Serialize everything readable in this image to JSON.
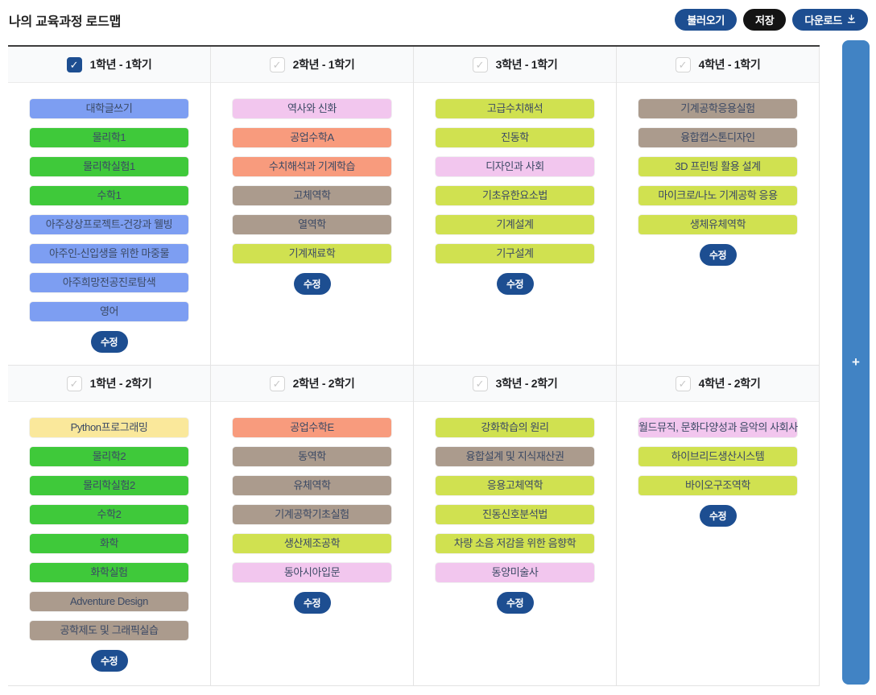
{
  "page": {
    "title": "나의 교육과정 로드맵"
  },
  "toolbar": {
    "load_label": "불러오기",
    "save_label": "저장",
    "download_label": "다운로드"
  },
  "edit_button_label": "수정",
  "add_bar": {
    "plus": "+"
  },
  "colors": {
    "blue": "#7d9ef2",
    "green": "#3fc93a",
    "lime": "#d0e150",
    "pink": "#f2c6ee",
    "salmon": "#f89b7d",
    "taupe": "#ab9b8d",
    "yellow": "#fae89b",
    "navy": "#1d4e91",
    "black": "#141414",
    "sidebar_blue": "#4183c4"
  },
  "semesters": [
    {
      "label": "1학년 - 1학기",
      "checked": true,
      "courses": [
        {
          "name": "대학글쓰기",
          "color": "blue"
        },
        {
          "name": "물리학1",
          "color": "green"
        },
        {
          "name": "물리학실험1",
          "color": "green"
        },
        {
          "name": "수학1",
          "color": "green"
        },
        {
          "name": "아주상상프로젝트-건강과 웰빙",
          "color": "blue"
        },
        {
          "name": "아주인-신입생을 위한 마중물",
          "color": "blue"
        },
        {
          "name": "아주희망전공진로탐색",
          "color": "blue"
        },
        {
          "name": "영어",
          "color": "blue"
        }
      ]
    },
    {
      "label": "2학년 - 1학기",
      "checked": false,
      "courses": [
        {
          "name": "역사와 신화",
          "color": "pink"
        },
        {
          "name": "공업수학A",
          "color": "salmon"
        },
        {
          "name": "수치해석과 기계학습",
          "color": "salmon"
        },
        {
          "name": "고체역학",
          "color": "taupe"
        },
        {
          "name": "열역학",
          "color": "taupe"
        },
        {
          "name": "기계재료학",
          "color": "lime"
        }
      ]
    },
    {
      "label": "3학년 - 1학기",
      "checked": false,
      "courses": [
        {
          "name": "고급수치해석",
          "color": "lime"
        },
        {
          "name": "진동학",
          "color": "lime"
        },
        {
          "name": "디자인과 사회",
          "color": "pink"
        },
        {
          "name": "기초유한요소법",
          "color": "lime"
        },
        {
          "name": "기계설계",
          "color": "lime"
        },
        {
          "name": "기구설계",
          "color": "lime"
        }
      ]
    },
    {
      "label": "4학년 - 1학기",
      "checked": false,
      "courses": [
        {
          "name": "기계공학응용실험",
          "color": "taupe"
        },
        {
          "name": "융합캡스톤디자인",
          "color": "taupe"
        },
        {
          "name": "3D 프린팅 활용 설계",
          "color": "lime"
        },
        {
          "name": "마이크로/나노 기계공학 응용",
          "color": "lime"
        },
        {
          "name": "생체유체역학",
          "color": "lime"
        }
      ]
    },
    {
      "label": "1학년 - 2학기",
      "checked": false,
      "courses": [
        {
          "name": "Python프로그래밍",
          "color": "yellow"
        },
        {
          "name": "물리학2",
          "color": "green"
        },
        {
          "name": "물리학실험2",
          "color": "green"
        },
        {
          "name": "수학2",
          "color": "green"
        },
        {
          "name": "화학",
          "color": "green"
        },
        {
          "name": "화학실험",
          "color": "green"
        },
        {
          "name": "Adventure Design",
          "color": "taupe"
        },
        {
          "name": "공학제도 및 그래픽실습",
          "color": "taupe"
        }
      ]
    },
    {
      "label": "2학년 - 2학기",
      "checked": false,
      "courses": [
        {
          "name": "공업수학E",
          "color": "salmon"
        },
        {
          "name": "동역학",
          "color": "taupe"
        },
        {
          "name": "유체역학",
          "color": "taupe"
        },
        {
          "name": "기계공학기초실험",
          "color": "taupe"
        },
        {
          "name": "생산제조공학",
          "color": "lime"
        },
        {
          "name": "동아시아입문",
          "color": "pink"
        }
      ]
    },
    {
      "label": "3학년 - 2학기",
      "checked": false,
      "courses": [
        {
          "name": "강화학습의 원리",
          "color": "lime"
        },
        {
          "name": "융합설계 및 지식재산권",
          "color": "taupe"
        },
        {
          "name": "응용고체역학",
          "color": "lime"
        },
        {
          "name": "진동신호분석법",
          "color": "lime"
        },
        {
          "name": "차량 소음 저감을 위한 음향학",
          "color": "lime"
        },
        {
          "name": "동양미술사",
          "color": "pink"
        }
      ]
    },
    {
      "label": "4학년 - 2학기",
      "checked": false,
      "courses": [
        {
          "name": "월드뮤직, 문화다양성과 음악의 사회사",
          "color": "pink"
        },
        {
          "name": "하이브리드생산시스템",
          "color": "lime"
        },
        {
          "name": "바이오구조역학",
          "color": "lime"
        }
      ]
    }
  ]
}
